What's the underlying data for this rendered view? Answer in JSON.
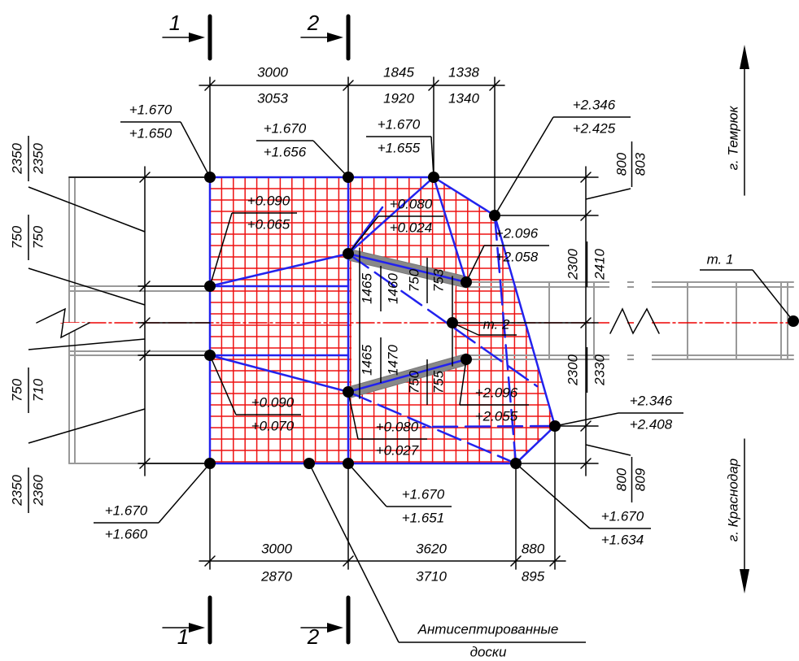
{
  "sections": {
    "top_left": "1",
    "top_right": "2",
    "bottom_left": "1",
    "bottom_right": "2"
  },
  "dims": {
    "top": [
      {
        "design": "3000",
        "actual": "3053"
      },
      {
        "design": "1845",
        "actual": "1920"
      },
      {
        "design": "1338",
        "actual": "1340"
      }
    ],
    "bottom": [
      {
        "design": "3000",
        "actual": "2870"
      },
      {
        "design": "3620",
        "actual": "3710"
      },
      {
        "design": "880",
        "actual": "895"
      }
    ],
    "left": [
      {
        "design": "2350",
        "actual": "2350"
      },
      {
        "design": "750",
        "actual": "750"
      },
      {
        "design": "750",
        "actual": "710"
      },
      {
        "design": "2350",
        "actual": "2360"
      }
    ],
    "right": [
      {
        "design": "800",
        "actual": "803"
      },
      {
        "design": "2300",
        "actual": "2410"
      },
      {
        "design": "2300",
        "actual": "2330"
      },
      {
        "design": "800",
        "actual": "809"
      }
    ],
    "inner": [
      {
        "design": "1465",
        "actual": "1460"
      },
      {
        "design": "750",
        "actual": "753"
      },
      {
        "design": "1465",
        "actual": "1470"
      },
      {
        "design": "750",
        "actual": "755"
      }
    ]
  },
  "levels": [
    {
      "design": "+1.670",
      "actual": "+1.650"
    },
    {
      "design": "+1.670",
      "actual": "+1.656"
    },
    {
      "design": "+1.670",
      "actual": "+1.655"
    },
    {
      "design": "+2.346",
      "actual": "+2.425"
    },
    {
      "design": "+0.090",
      "actual": "+0.065"
    },
    {
      "design": "+0.080",
      "actual": "+0.024"
    },
    {
      "design": "+2.096",
      "actual": "+2.058"
    },
    {
      "design": "+0.090",
      "actual": "+0.070"
    },
    {
      "design": "+2.096",
      "actual": "+2.055"
    },
    {
      "design": "+0.080",
      "actual": "+0.027"
    },
    {
      "design": "+2.346",
      "actual": "+2.408"
    },
    {
      "design": "+1.670",
      "actual": "+1.660"
    },
    {
      "design": "+1.670",
      "actual": "+1.651"
    },
    {
      "design": "+1.670",
      "actual": "+1.634"
    }
  ],
  "points": [
    "т. 1",
    "т. 2"
  ],
  "directions": [
    "г. Темрюк",
    "г. Краснодар"
  ],
  "note": [
    "Антисептированные",
    "доски"
  ]
}
